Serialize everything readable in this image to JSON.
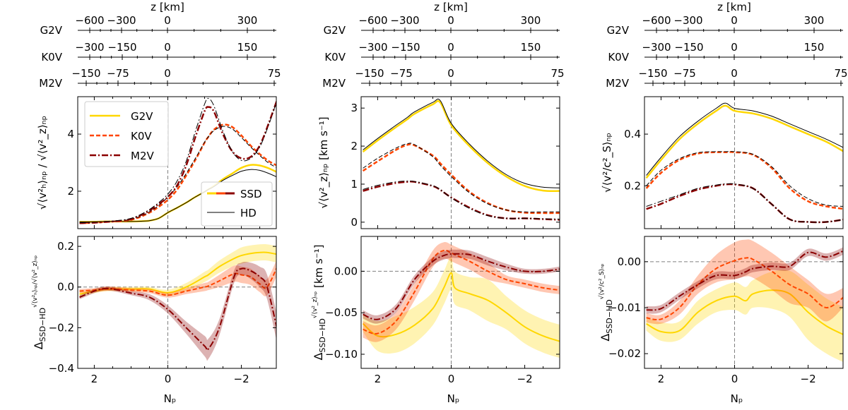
{
  "z_axis": {
    "title": "z [km]",
    "rows": [
      {
        "star": "G2V",
        "ticks": [
          "−600",
          "−300",
          "0",
          "300"
        ]
      },
      {
        "star": "K0V",
        "ticks": [
          "−300",
          "−150",
          "0",
          "150"
        ]
      },
      {
        "star": "M2V",
        "ticks": [
          "−150",
          "−75",
          "0",
          "75"
        ]
      }
    ]
  },
  "legend": {
    "stars": [
      "G2V",
      "K0V",
      "M2V"
    ],
    "models": [
      "SSD",
      "HD"
    ]
  },
  "colors": {
    "G2V": "#ffd700",
    "K0V": "#ff4500",
    "M2V": "#8b0000",
    "HD": "#000000",
    "zero_line": "#808080"
  },
  "chart_data": [
    {
      "type": "line",
      "ylabel": "√⟨v²ₕ⟩ₙₚ / √⟨v²_z⟩ₙₚ",
      "xlim": [
        2.45,
        -2.95
      ],
      "ylim": [
        0.69,
        5.31
      ],
      "xticks": [
        2,
        0,
        -2
      ],
      "xtick_labels": [
        "",
        "",
        ""
      ],
      "yticks": [
        2,
        4
      ],
      "ytick_labels": [
        "2",
        "4"
      ],
      "x": [
        2.4,
        2.0,
        1.75,
        1.5,
        1.25,
        1.0,
        0.75,
        0.5,
        0.25,
        0,
        -0.25,
        -0.5,
        -0.75,
        -1.0,
        -1.1,
        -1.25,
        -1.5,
        -1.75,
        -2.0,
        -2.25,
        -2.5,
        -2.75,
        -3.0
      ],
      "series": [
        {
          "name": "G2V",
          "model": "SSD",
          "values": [
            0.93,
            0.93,
            0.94,
            0.94,
            0.94,
            0.94,
            0.95,
            0.97,
            1.05,
            1.25,
            1.42,
            1.6,
            1.8,
            1.98,
            2.06,
            2.18,
            2.42,
            2.62,
            2.82,
            2.92,
            2.9,
            2.8,
            2.65
          ]
        },
        {
          "name": "G2V",
          "model": "HD",
          "values": [
            0.93,
            0.93,
            0.94,
            0.94,
            0.94,
            0.94,
            0.95,
            0.97,
            1.05,
            1.25,
            1.42,
            1.6,
            1.8,
            1.98,
            2.06,
            2.16,
            2.38,
            2.55,
            2.7,
            2.76,
            2.73,
            2.62,
            2.48
          ]
        },
        {
          "name": "K0V",
          "model": "SSD",
          "values": [
            0.88,
            0.9,
            0.92,
            0.94,
            0.96,
            1.0,
            1.1,
            1.25,
            1.45,
            1.7,
            2.05,
            2.55,
            3.1,
            3.7,
            3.9,
            4.15,
            4.33,
            4.25,
            3.95,
            3.6,
            3.3,
            3.05,
            2.88
          ]
        },
        {
          "name": "K0V",
          "model": "HD",
          "values": [
            0.9,
            0.92,
            0.94,
            0.95,
            0.97,
            1.02,
            1.12,
            1.28,
            1.5,
            1.8,
            2.15,
            2.62,
            3.15,
            3.72,
            3.9,
            4.12,
            4.27,
            4.18,
            3.88,
            3.55,
            3.25,
            2.98,
            2.8
          ]
        },
        {
          "name": "M2V",
          "model": "SSD",
          "values": [
            0.88,
            0.9,
            0.92,
            0.94,
            0.97,
            1.02,
            1.15,
            1.32,
            1.55,
            1.8,
            2.2,
            2.9,
            3.9,
            4.8,
            4.95,
            4.8,
            4.0,
            3.4,
            3.15,
            3.2,
            3.6,
            4.4,
            5.3
          ]
        },
        {
          "name": "M2V",
          "model": "HD",
          "values": [
            0.9,
            0.92,
            0.94,
            0.96,
            0.99,
            1.05,
            1.18,
            1.36,
            1.6,
            1.9,
            2.35,
            3.05,
            4.1,
            5.05,
            5.25,
            5.0,
            4.1,
            3.4,
            3.08,
            3.15,
            3.55,
            4.35,
            5.3
          ]
        }
      ]
    },
    {
      "type": "line",
      "xlabel": "Nₚ",
      "ylabel": {
        "symbol": "Δ",
        "subscript": "SSD−HD",
        "superscript": "√⟨v²ₕ⟩ₙₚ/√⟨v²_z⟩ₙₚ",
        "unit": ""
      },
      "xlim": [
        2.45,
        -2.95
      ],
      "ylim": [
        -0.4,
        0.249
      ],
      "xticks": [
        2,
        0,
        -2
      ],
      "xtick_labels": [
        "2",
        "0",
        "−2"
      ],
      "yticks": [
        -0.4,
        -0.2,
        0.0,
        0.2
      ],
      "ytick_labels": [
        "−0.4",
        "−0.2",
        "0.0",
        "0.2"
      ],
      "x": [
        2.4,
        2.0,
        1.75,
        1.5,
        1.0,
        0.5,
        0,
        -0.5,
        -1.0,
        -1.1,
        -1.4,
        -1.8,
        -2.0,
        -2.25,
        -2.5,
        -2.7,
        -3.0
      ],
      "series": [
        {
          "name": "G2V",
          "values": [
            -0.035,
            -0.02,
            -0.012,
            -0.01,
            -0.01,
            -0.01,
            -0.028,
            0.0,
            0.05,
            0.06,
            0.1,
            0.14,
            0.155,
            0.165,
            0.17,
            0.17,
            0.16
          ],
          "err": [
            0.01,
            0.01,
            0.01,
            0.01,
            0.01,
            0.01,
            0.015,
            0.02,
            0.025,
            0.025,
            0.03,
            0.035,
            0.04,
            0.04,
            0.04,
            0.04,
            0.04
          ]
        },
        {
          "name": "K0V",
          "values": [
            -0.02,
            -0.015,
            -0.01,
            -0.008,
            -0.015,
            -0.02,
            -0.04,
            -0.02,
            0.0,
            0.005,
            0.03,
            0.065,
            0.06,
            0.05,
            0.015,
            0.0,
            0.11
          ],
          "err": [
            0.01,
            0.01,
            0.01,
            0.01,
            0.01,
            0.01,
            0.012,
            0.015,
            0.02,
            0.02,
            0.03,
            0.04,
            0.04,
            0.04,
            0.04,
            0.04,
            0.04
          ]
        },
        {
          "name": "M2V",
          "values": [
            -0.05,
            -0.02,
            -0.008,
            -0.01,
            -0.03,
            -0.05,
            -0.11,
            -0.2,
            -0.29,
            -0.305,
            -0.2,
            0.05,
            0.09,
            0.08,
            0.05,
            0.0,
            -0.23
          ],
          "err": [
            0.01,
            0.01,
            0.01,
            0.01,
            0.01,
            0.015,
            0.02,
            0.03,
            0.05,
            0.05,
            0.04,
            0.03,
            0.03,
            0.04,
            0.05,
            0.06,
            0.07
          ]
        }
      ]
    },
    {
      "type": "line",
      "ylabel": "√⟨v²_z⟩ₙₚ [km s⁻¹]",
      "xlim": [
        2.45,
        -2.95
      ],
      "ylim": [
        -0.17,
        3.3
      ],
      "xticks": [
        2,
        0,
        -2
      ],
      "xtick_labels": [
        "",
        "",
        ""
      ],
      "yticks": [
        0,
        1,
        2,
        3
      ],
      "ytick_labels": [
        "0",
        "1",
        "2",
        "3"
      ],
      "x": [
        2.4,
        2.0,
        1.5,
        1.2,
        1.0,
        0.5,
        0.3,
        0,
        -0.5,
        -1.0,
        -1.5,
        -2.0,
        -2.5,
        -3.0
      ],
      "series": [
        {
          "name": "G2V",
          "model": "SSD",
          "values": [
            1.85,
            2.15,
            2.5,
            2.7,
            2.85,
            3.1,
            3.15,
            2.55,
            2.0,
            1.55,
            1.2,
            0.95,
            0.83,
            0.82
          ]
        },
        {
          "name": "G2V",
          "model": "HD",
          "values": [
            1.9,
            2.2,
            2.55,
            2.75,
            2.9,
            3.15,
            3.2,
            2.6,
            2.05,
            1.6,
            1.25,
            1.02,
            0.92,
            0.9
          ]
        },
        {
          "name": "K0V",
          "model": "SSD",
          "values": [
            1.35,
            1.6,
            1.9,
            2.03,
            2.02,
            1.75,
            1.55,
            1.25,
            0.8,
            0.5,
            0.32,
            0.25,
            0.24,
            0.24
          ]
        },
        {
          "name": "K0V",
          "model": "HD",
          "values": [
            1.42,
            1.68,
            1.95,
            2.06,
            2.04,
            1.72,
            1.5,
            1.2,
            0.77,
            0.48,
            0.32,
            0.27,
            0.27,
            0.27
          ]
        },
        {
          "name": "M2V",
          "model": "SSD",
          "values": [
            0.82,
            0.93,
            1.03,
            1.06,
            1.06,
            0.95,
            0.85,
            0.65,
            0.38,
            0.18,
            0.1,
            0.1,
            0.08,
            0.06
          ]
        },
        {
          "name": "M2V",
          "model": "HD",
          "values": [
            0.86,
            0.97,
            1.06,
            1.08,
            1.07,
            0.96,
            0.86,
            0.64,
            0.36,
            0.17,
            0.1,
            0.1,
            0.09,
            0.08
          ]
        }
      ]
    },
    {
      "type": "line",
      "xlabel": "Nₚ",
      "ylabel": {
        "symbol": "Δ",
        "subscript": "SSD−HD",
        "superscript": "√⟨v²_z⟩ₙₚ",
        "unit": " [km s⁻¹]"
      },
      "xlim": [
        2.45,
        -2.95
      ],
      "ylim": [
        -0.117,
        0.042
      ],
      "xticks": [
        2,
        0,
        -2
      ],
      "xtick_labels": [
        "2",
        "0",
        "−2"
      ],
      "yticks": [
        -0.1,
        -0.05,
        0.0
      ],
      "ytick_labels": [
        "−0.10",
        "−0.05",
        "0.00"
      ],
      "x": [
        2.4,
        2.0,
        1.5,
        1.0,
        0.5,
        0.2,
        0,
        -0.1,
        -0.5,
        -1.0,
        -1.5,
        -2.0,
        -2.5,
        -3.0
      ],
      "series": [
        {
          "name": "G2V",
          "values": [
            -0.063,
            -0.078,
            -0.076,
            -0.065,
            -0.045,
            -0.02,
            -0.002,
            -0.02,
            -0.027,
            -0.035,
            -0.05,
            -0.067,
            -0.078,
            -0.085
          ],
          "err": [
            0.01,
            0.018,
            0.022,
            0.022,
            0.02,
            0.02,
            0.02,
            0.02,
            0.02,
            0.025,
            0.02,
            0.02,
            0.02,
            0.02
          ]
        },
        {
          "name": "K0V",
          "values": [
            -0.07,
            -0.075,
            -0.06,
            -0.025,
            0.015,
            0.025,
            0.022,
            0.02,
            0.012,
            0.0,
            -0.01,
            -0.015,
            -0.02,
            -0.023
          ],
          "err": [
            0.01,
            0.01,
            0.01,
            0.01,
            0.01,
            0.01,
            0.01,
            0.01,
            0.01,
            0.01,
            0.005,
            0.005,
            0.005,
            0.005
          ]
        },
        {
          "name": "M2V",
          "values": [
            -0.052,
            -0.058,
            -0.045,
            -0.01,
            0.012,
            0.019,
            0.021,
            0.021,
            0.02,
            0.012,
            0.005,
            0.0,
            0.0,
            0.003
          ],
          "err": [
            0.005,
            0.005,
            0.005,
            0.005,
            0.005,
            0.005,
            0.005,
            0.005,
            0.005,
            0.005,
            0.004,
            0.003,
            0.003,
            0.003
          ]
        }
      ]
    },
    {
      "type": "line",
      "ylabel": "√⟨v²/c²_S⟩ₙₚ",
      "xlim": [
        2.45,
        -2.95
      ],
      "ylim": [
        0.034,
        0.545
      ],
      "xticks": [
        2,
        0,
        -2
      ],
      "xtick_labels": [
        "",
        "",
        ""
      ],
      "yticks": [
        0.2,
        0.4
      ],
      "ytick_labels": [
        "0.2",
        "0.4"
      ],
      "x": [
        2.4,
        2.0,
        1.5,
        1.0,
        0.5,
        0.25,
        0,
        -0.5,
        -1.0,
        -1.5,
        -2.0,
        -2.5,
        -3.0
      ],
      "series": [
        {
          "name": "G2V",
          "model": "SSD",
          "values": [
            0.23,
            0.3,
            0.38,
            0.44,
            0.49,
            0.51,
            0.49,
            0.48,
            0.46,
            0.43,
            0.4,
            0.37,
            0.33
          ]
        },
        {
          "name": "G2V",
          "model": "HD",
          "values": [
            0.24,
            0.31,
            0.39,
            0.45,
            0.5,
            0.52,
            0.5,
            0.49,
            0.47,
            0.44,
            0.41,
            0.38,
            0.345
          ]
        },
        {
          "name": "K0V",
          "model": "SSD",
          "values": [
            0.19,
            0.25,
            0.3,
            0.325,
            0.33,
            0.33,
            0.33,
            0.32,
            0.27,
            0.19,
            0.14,
            0.12,
            0.11
          ]
        },
        {
          "name": "K0V",
          "model": "HD",
          "values": [
            0.2,
            0.26,
            0.305,
            0.328,
            0.332,
            0.332,
            0.332,
            0.322,
            0.275,
            0.2,
            0.15,
            0.125,
            0.12
          ]
        },
        {
          "name": "M2V",
          "model": "SSD",
          "values": [
            0.11,
            0.13,
            0.16,
            0.185,
            0.2,
            0.205,
            0.205,
            0.19,
            0.13,
            0.07,
            0.06,
            0.06,
            0.07
          ]
        },
        {
          "name": "M2V",
          "model": "HD",
          "values": [
            0.12,
            0.14,
            0.165,
            0.19,
            0.203,
            0.207,
            0.207,
            0.19,
            0.13,
            0.07,
            0.06,
            0.06,
            0.07
          ]
        }
      ]
    },
    {
      "type": "line",
      "xlabel": "Nₚ",
      "ylabel": {
        "symbol": "Δ",
        "subscript": "SSD−HD",
        "superscript": "√⟨v²/c²_S⟩ₙₚ",
        "unit": ""
      },
      "xlim": [
        2.45,
        -2.95
      ],
      "ylim": [
        -0.0232,
        0.0055
      ],
      "xticks": [
        2,
        0,
        -2
      ],
      "xtick_labels": [
        "2",
        "0",
        "−2"
      ],
      "yticks": [
        -0.02,
        -0.01,
        0.0
      ],
      "ytick_labels": [
        "−0.02",
        "−0.01",
        "0.00"
      ],
      "x": [
        2.4,
        2.0,
        1.5,
        1.0,
        0.5,
        0,
        -0.3,
        -0.5,
        -1.0,
        -1.5,
        -2.0,
        -2.5,
        -3.0
      ],
      "series": [
        {
          "name": "G2V",
          "values": [
            -0.0135,
            -0.0152,
            -0.015,
            -0.011,
            -0.0085,
            -0.0075,
            -0.0085,
            -0.007,
            -0.0062,
            -0.007,
            -0.011,
            -0.014,
            -0.016
          ],
          "err": [
            0.0015,
            0.002,
            0.002,
            0.0025,
            0.0025,
            0.003,
            0.003,
            0.003,
            0.004,
            0.005,
            0.006,
            0.006,
            0.006
          ]
        },
        {
          "name": "K0V",
          "values": [
            -0.0122,
            -0.0125,
            -0.01,
            -0.005,
            -0.0015,
            0.0002,
            0.0008,
            0.0005,
            -0.002,
            -0.005,
            -0.007,
            -0.01,
            -0.0075
          ],
          "err": [
            0.001,
            0.001,
            0.0015,
            0.002,
            0.003,
            0.004,
            0.004,
            0.004,
            0.004,
            0.004,
            0.003,
            0.003,
            0.002
          ]
        },
        {
          "name": "M2V",
          "values": [
            -0.0105,
            -0.0102,
            -0.0075,
            -0.005,
            -0.003,
            -0.003,
            -0.0022,
            -0.0015,
            -0.001,
            -0.001,
            0.002,
            0.001,
            0.0025
          ],
          "err": [
            0.0008,
            0.0008,
            0.0008,
            0.0008,
            0.0008,
            0.0008,
            0.0008,
            0.0008,
            0.0008,
            0.0008,
            0.0008,
            0.0008,
            0.0008
          ]
        }
      ]
    }
  ]
}
